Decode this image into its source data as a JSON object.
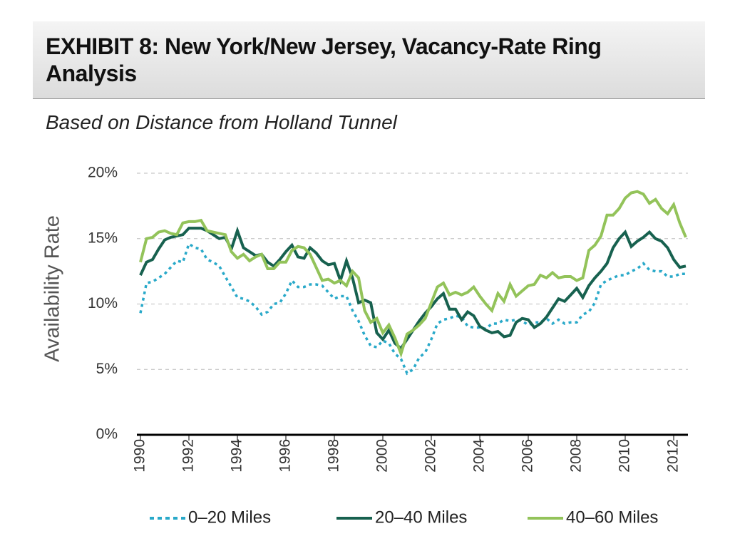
{
  "chart_data": {
    "type": "line",
    "title": "EXHIBIT 8:  New York/New Jersey, Vacancy-Rate Ring Analysis",
    "subtitle": "Based on Distance from Holland Tunnel",
    "y_label": "Availability Rate",
    "x": [
      1990,
      1990.25,
      1990.5,
      1990.75,
      1991,
      1991.25,
      1991.5,
      1991.75,
      1992,
      1992.25,
      1992.5,
      1992.75,
      1993,
      1993.25,
      1993.5,
      1993.75,
      1994,
      1994.25,
      1994.5,
      1994.75,
      1995,
      1995.25,
      1995.5,
      1995.75,
      1996,
      1996.25,
      1996.5,
      1996.75,
      1997,
      1997.25,
      1997.5,
      1997.75,
      1998,
      1998.25,
      1998.5,
      1998.75,
      1999,
      1999.25,
      1999.5,
      1999.75,
      2000,
      2000.25,
      2000.5,
      2000.75,
      2001,
      2001.25,
      2001.5,
      2001.75,
      2002,
      2002.25,
      2002.5,
      2002.75,
      2003,
      2003.25,
      2003.5,
      2003.75,
      2004,
      2004.25,
      2004.5,
      2004.75,
      2005,
      2005.25,
      2005.5,
      2005.75,
      2006,
      2006.25,
      2006.5,
      2006.75,
      2007,
      2007.25,
      2007.5,
      2007.75,
      2008,
      2008.25,
      2008.5,
      2008.75,
      2009,
      2009.25,
      2009.5,
      2009.75,
      2010,
      2010.25,
      2010.5,
      2010.75,
      2011,
      2011.25,
      2011.5,
      2011.75,
      2012,
      2012.25,
      2012.5
    ],
    "series": [
      {
        "name": "0–20 Miles",
        "color": "#29a9c9",
        "dash": true,
        "values": [
          9.3,
          11.6,
          11.7,
          12.0,
          12.3,
          12.8,
          13.3,
          13.2,
          14.6,
          14.3,
          14.2,
          13.4,
          13.2,
          12.9,
          12.1,
          11.3,
          10.5,
          10.4,
          10.2,
          9.8,
          9.2,
          9.4,
          10.0,
          10.1,
          10.8,
          11.8,
          11.3,
          11.3,
          11.5,
          11.5,
          11.4,
          10.9,
          10.4,
          10.6,
          10.6,
          9.5,
          8.7,
          7.6,
          6.8,
          6.7,
          7.2,
          7.0,
          6.2,
          5.8,
          4.7,
          5.0,
          5.9,
          6.3,
          7.3,
          8.5,
          8.8,
          8.9,
          9.1,
          9.0,
          8.3,
          8.2,
          8.2,
          8.1,
          8.5,
          8.5,
          8.8,
          8.7,
          8.8,
          8.7,
          8.4,
          8.6,
          8.6,
          8.9,
          8.5,
          8.8,
          8.5,
          8.6,
          8.6,
          9.2,
          9.4,
          10.1,
          11.5,
          11.8,
          12.0,
          12.2,
          12.2,
          12.5,
          12.7,
          13.1,
          12.6,
          12.5,
          12.5,
          12.1,
          12.1,
          12.3,
          12.3
        ]
      },
      {
        "name": "20–40 Miles",
        "color": "#17614f",
        "dash": false,
        "values": [
          12.2,
          13.2,
          13.4,
          14.2,
          14.9,
          15.1,
          15.2,
          15.3,
          15.8,
          15.8,
          15.8,
          15.6,
          15.3,
          15.0,
          15.1,
          14.2,
          15.6,
          14.3,
          14.0,
          13.7,
          13.8,
          13.2,
          12.9,
          13.4,
          14.0,
          14.5,
          13.6,
          13.5,
          14.3,
          13.9,
          13.3,
          13.0,
          13.1,
          11.8,
          13.3,
          12.0,
          10.1,
          10.3,
          10.1,
          7.8,
          7.3,
          8.0,
          7.0,
          6.6,
          7.3,
          8.0,
          8.7,
          9.3,
          9.8,
          10.4,
          10.8,
          9.6,
          9.6,
          8.8,
          9.4,
          9.1,
          8.3,
          8.0,
          7.8,
          7.9,
          7.5,
          7.6,
          8.6,
          8.9,
          8.8,
          8.2,
          8.5,
          9.0,
          9.7,
          10.4,
          10.2,
          10.7,
          11.2,
          10.5,
          11.4,
          12.0,
          12.5,
          13.1,
          14.3,
          15.0,
          15.5,
          14.4,
          14.8,
          15.1,
          15.5,
          15.0,
          14.8,
          14.3,
          13.4,
          12.8,
          12.9
        ]
      },
      {
        "name": "40–60 Miles",
        "color": "#93c35a",
        "dash": false,
        "values": [
          13.2,
          15.0,
          15.1,
          15.5,
          15.6,
          15.4,
          15.3,
          16.2,
          16.3,
          16.3,
          16.4,
          15.6,
          15.5,
          15.4,
          15.3,
          14.0,
          13.5,
          13.8,
          13.3,
          13.6,
          13.8,
          12.7,
          12.7,
          13.2,
          13.2,
          14.1,
          14.4,
          14.3,
          13.8,
          12.8,
          11.8,
          11.9,
          11.6,
          11.8,
          11.4,
          12.5,
          12.0,
          9.5,
          8.6,
          8.9,
          7.8,
          8.4,
          7.4,
          6.2,
          7.7,
          8.0,
          8.4,
          8.9,
          10.1,
          11.3,
          11.6,
          10.7,
          10.9,
          10.7,
          10.9,
          11.3,
          10.6,
          10.0,
          9.5,
          10.8,
          10.2,
          11.5,
          10.6,
          11.0,
          11.4,
          11.5,
          12.2,
          12.0,
          12.4,
          12.0,
          12.1,
          12.1,
          11.8,
          12.0,
          14.1,
          14.5,
          15.2,
          16.8,
          16.8,
          17.3,
          18.1,
          18.5,
          18.6,
          18.4,
          17.7,
          18.0,
          17.3,
          16.9,
          17.6,
          16.2,
          15.1
        ]
      }
    ],
    "xlim": [
      1990,
      2013
    ],
    "xticks": [
      1990,
      1992,
      1994,
      1996,
      1998,
      2000,
      2002,
      2004,
      2006,
      2008,
      2010,
      2012
    ],
    "ylim": [
      0,
      20
    ],
    "yticks": [
      {
        "value": 0,
        "label": "0%"
      },
      {
        "value": 5,
        "label": "5%"
      },
      {
        "value": 10,
        "label": "10%"
      },
      {
        "value": 15,
        "label": "15%"
      },
      {
        "value": 20,
        "label": "20%"
      }
    ],
    "grid": true
  }
}
